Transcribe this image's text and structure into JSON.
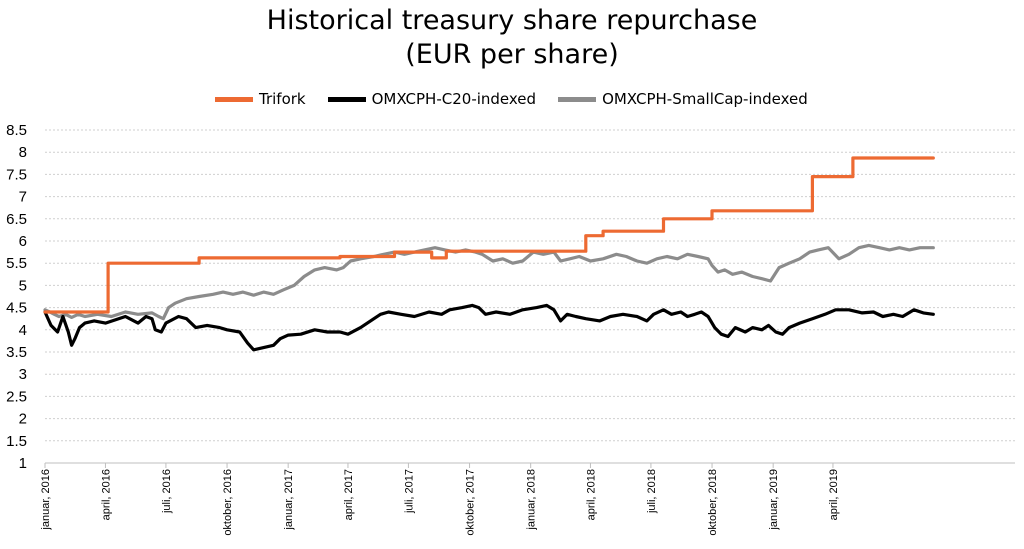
{
  "chart_data": {
    "type": "line",
    "title": [
      "Historical treasury share repurchase",
      "(EUR per share)"
    ],
    "ylim": [
      1,
      8.5
    ],
    "yticks": [
      "1",
      "1.5",
      "2",
      "2.5",
      "3",
      "3.5",
      "4",
      "4.5",
      "5",
      "5.5",
      "6",
      "6.5",
      "7",
      "7.5",
      "8",
      "8.5"
    ],
    "grid": true,
    "legend_position": "top",
    "x_range": [
      "2016-01-01",
      "2019-12-31"
    ],
    "x_ticks": [
      {
        "date": "2016-01-01",
        "label": "januar, 2016"
      },
      {
        "date": "2016-04-01",
        "label": "april, 2016"
      },
      {
        "date": "2016-07-01",
        "label": "juli, 2016"
      },
      {
        "date": "2016-10-01",
        "label": "oktober, 2016"
      },
      {
        "date": "2017-01-01",
        "label": "januar, 2017"
      },
      {
        "date": "2017-04-01",
        "label": "april, 2017"
      },
      {
        "date": "2017-07-01",
        "label": "juli, 2017"
      },
      {
        "date": "2017-10-01",
        "label": "oktober, 2017"
      },
      {
        "date": "2018-01-01",
        "label": "januar, 2018"
      },
      {
        "date": "2018-04-01",
        "label": "april, 2018"
      },
      {
        "date": "2018-07-01",
        "label": "juli, 2018"
      },
      {
        "date": "2018-10-01",
        "label": "oktober, 2018"
      },
      {
        "date": "2019-01-01",
        "label": "januar, 2019"
      },
      {
        "date": "2019-04-01",
        "label": "april, 2019"
      }
    ],
    "series": [
      {
        "name": "Trifork",
        "color": "#ED6A32",
        "step": true,
        "points": [
          [
            "2016-01-01",
            4.4
          ],
          [
            "2016-04-05",
            5.5
          ],
          [
            "2016-08-20",
            5.62
          ],
          [
            "2017-03-20",
            5.65
          ],
          [
            "2017-06-10",
            5.75
          ],
          [
            "2017-08-05",
            5.62
          ],
          [
            "2017-08-27",
            5.77
          ],
          [
            "2018-03-25",
            6.12
          ],
          [
            "2018-04-20",
            6.22
          ],
          [
            "2018-07-20",
            6.5
          ],
          [
            "2018-10-01",
            6.68
          ],
          [
            "2019-03-01",
            7.45
          ],
          [
            "2019-05-01",
            7.87
          ],
          [
            "2019-08-30",
            7.87
          ]
        ]
      },
      {
        "name": "OMXCPH-C20-indexed",
        "color": "#000000",
        "step": false,
        "points": [
          [
            "2016-01-01",
            4.4
          ],
          [
            "2016-01-10",
            4.1
          ],
          [
            "2016-01-20",
            3.95
          ],
          [
            "2016-01-28",
            4.3
          ],
          [
            "2016-02-05",
            3.95
          ],
          [
            "2016-02-10",
            3.65
          ],
          [
            "2016-02-15",
            3.8
          ],
          [
            "2016-02-22",
            4.05
          ],
          [
            "2016-03-01",
            4.15
          ],
          [
            "2016-03-15",
            4.2
          ],
          [
            "2016-04-01",
            4.15
          ],
          [
            "2016-05-01",
            4.3
          ],
          [
            "2016-05-20",
            4.15
          ],
          [
            "2016-06-01",
            4.3
          ],
          [
            "2016-06-10",
            4.25
          ],
          [
            "2016-06-15",
            4.0
          ],
          [
            "2016-06-24",
            3.95
          ],
          [
            "2016-07-01",
            4.15
          ],
          [
            "2016-07-20",
            4.3
          ],
          [
            "2016-08-01",
            4.25
          ],
          [
            "2016-08-15",
            4.05
          ],
          [
            "2016-09-01",
            4.1
          ],
          [
            "2016-09-20",
            4.05
          ],
          [
            "2016-10-01",
            4.0
          ],
          [
            "2016-10-20",
            3.95
          ],
          [
            "2016-11-01",
            3.7
          ],
          [
            "2016-11-10",
            3.55
          ],
          [
            "2016-11-25",
            3.6
          ],
          [
            "2016-12-10",
            3.65
          ],
          [
            "2016-12-20",
            3.8
          ],
          [
            "2017-01-01",
            3.88
          ],
          [
            "2017-01-20",
            3.9
          ],
          [
            "2017-02-10",
            4.0
          ],
          [
            "2017-03-01",
            3.95
          ],
          [
            "2017-03-20",
            3.95
          ],
          [
            "2017-04-01",
            3.9
          ],
          [
            "2017-04-20",
            4.05
          ],
          [
            "2017-05-10",
            4.25
          ],
          [
            "2017-05-20",
            4.35
          ],
          [
            "2017-06-01",
            4.4
          ],
          [
            "2017-06-20",
            4.35
          ],
          [
            "2017-07-10",
            4.3
          ],
          [
            "2017-08-01",
            4.4
          ],
          [
            "2017-08-20",
            4.35
          ],
          [
            "2017-09-01",
            4.45
          ],
          [
            "2017-09-20",
            4.5
          ],
          [
            "2017-10-05",
            4.55
          ],
          [
            "2017-10-15",
            4.5
          ],
          [
            "2017-10-25",
            4.35
          ],
          [
            "2017-11-10",
            4.4
          ],
          [
            "2017-12-01",
            4.35
          ],
          [
            "2017-12-20",
            4.45
          ],
          [
            "2018-01-10",
            4.5
          ],
          [
            "2018-01-25",
            4.55
          ],
          [
            "2018-02-05",
            4.45
          ],
          [
            "2018-02-15",
            4.2
          ],
          [
            "2018-02-25",
            4.35
          ],
          [
            "2018-03-10",
            4.3
          ],
          [
            "2018-03-25",
            4.25
          ],
          [
            "2018-04-15",
            4.2
          ],
          [
            "2018-05-01",
            4.3
          ],
          [
            "2018-05-20",
            4.35
          ],
          [
            "2018-06-10",
            4.3
          ],
          [
            "2018-06-25",
            4.2
          ],
          [
            "2018-07-05",
            4.35
          ],
          [
            "2018-07-20",
            4.45
          ],
          [
            "2018-08-01",
            4.35
          ],
          [
            "2018-08-15",
            4.4
          ],
          [
            "2018-08-25",
            4.3
          ],
          [
            "2018-09-05",
            4.35
          ],
          [
            "2018-09-15",
            4.4
          ],
          [
            "2018-09-25",
            4.3
          ],
          [
            "2018-10-05",
            4.05
          ],
          [
            "2018-10-15",
            3.9
          ],
          [
            "2018-10-25",
            3.85
          ],
          [
            "2018-11-05",
            4.05
          ],
          [
            "2018-11-20",
            3.95
          ],
          [
            "2018-12-01",
            4.05
          ],
          [
            "2018-12-15",
            4.0
          ],
          [
            "2018-12-25",
            4.1
          ],
          [
            "2019-01-05",
            3.95
          ],
          [
            "2019-01-15",
            3.9
          ],
          [
            "2019-01-25",
            4.05
          ],
          [
            "2019-02-10",
            4.15
          ],
          [
            "2019-03-01",
            4.25
          ],
          [
            "2019-03-20",
            4.35
          ],
          [
            "2019-04-05",
            4.45
          ],
          [
            "2019-04-25",
            4.45
          ],
          [
            "2019-05-15",
            4.38
          ],
          [
            "2019-06-01",
            4.4
          ],
          [
            "2019-06-15",
            4.3
          ],
          [
            "2019-07-01",
            4.35
          ],
          [
            "2019-07-15",
            4.3
          ],
          [
            "2019-08-01",
            4.45
          ],
          [
            "2019-08-15",
            4.38
          ],
          [
            "2019-08-30",
            4.35
          ]
        ]
      },
      {
        "name": "OMXCPH-SmallCap-indexed",
        "color": "#8C8C8C",
        "step": false,
        "points": [
          [
            "2016-01-01",
            4.45
          ],
          [
            "2016-01-08",
            4.4
          ],
          [
            "2016-01-15",
            4.35
          ],
          [
            "2016-01-22",
            4.3
          ],
          [
            "2016-02-01",
            4.35
          ],
          [
            "2016-02-10",
            4.28
          ],
          [
            "2016-02-20",
            4.35
          ],
          [
            "2016-03-01",
            4.3
          ],
          [
            "2016-03-20",
            4.35
          ],
          [
            "2016-04-10",
            4.3
          ],
          [
            "2016-05-01",
            4.4
          ],
          [
            "2016-05-20",
            4.35
          ],
          [
            "2016-06-10",
            4.38
          ],
          [
            "2016-06-20",
            4.3
          ],
          [
            "2016-06-27",
            4.25
          ],
          [
            "2016-07-05",
            4.5
          ],
          [
            "2016-07-15",
            4.6
          ],
          [
            "2016-08-01",
            4.7
          ],
          [
            "2016-08-20",
            4.75
          ],
          [
            "2016-09-10",
            4.8
          ],
          [
            "2016-09-25",
            4.85
          ],
          [
            "2016-10-10",
            4.8
          ],
          [
            "2016-10-25",
            4.85
          ],
          [
            "2016-11-10",
            4.78
          ],
          [
            "2016-11-25",
            4.85
          ],
          [
            "2016-12-10",
            4.8
          ],
          [
            "2016-12-25",
            4.9
          ],
          [
            "2017-01-10",
            5.0
          ],
          [
            "2017-01-25",
            5.2
          ],
          [
            "2017-02-10",
            5.35
          ],
          [
            "2017-02-25",
            5.4
          ],
          [
            "2017-03-15",
            5.35
          ],
          [
            "2017-03-25",
            5.4
          ],
          [
            "2017-04-05",
            5.55
          ],
          [
            "2017-04-20",
            5.6
          ],
          [
            "2017-05-10",
            5.65
          ],
          [
            "2017-05-25",
            5.7
          ],
          [
            "2017-06-10",
            5.75
          ],
          [
            "2017-06-25",
            5.7
          ],
          [
            "2017-07-10",
            5.75
          ],
          [
            "2017-07-25",
            5.8
          ],
          [
            "2017-08-10",
            5.85
          ],
          [
            "2017-08-25",
            5.8
          ],
          [
            "2017-09-10",
            5.75
          ],
          [
            "2017-09-25",
            5.8
          ],
          [
            "2017-10-10",
            5.75
          ],
          [
            "2017-10-20",
            5.7
          ],
          [
            "2017-11-05",
            5.55
          ],
          [
            "2017-11-20",
            5.6
          ],
          [
            "2017-12-05",
            5.5
          ],
          [
            "2017-12-20",
            5.55
          ],
          [
            "2018-01-05",
            5.75
          ],
          [
            "2018-01-20",
            5.7
          ],
          [
            "2018-02-05",
            5.75
          ],
          [
            "2018-02-15",
            5.55
          ],
          [
            "2018-03-01",
            5.6
          ],
          [
            "2018-03-15",
            5.65
          ],
          [
            "2018-04-01",
            5.55
          ],
          [
            "2018-04-20",
            5.6
          ],
          [
            "2018-05-10",
            5.7
          ],
          [
            "2018-05-25",
            5.65
          ],
          [
            "2018-06-10",
            5.55
          ],
          [
            "2018-06-25",
            5.5
          ],
          [
            "2018-07-10",
            5.6
          ],
          [
            "2018-07-25",
            5.65
          ],
          [
            "2018-08-10",
            5.6
          ],
          [
            "2018-08-25",
            5.7
          ],
          [
            "2018-09-10",
            5.65
          ],
          [
            "2018-09-25",
            5.6
          ],
          [
            "2018-10-01",
            5.45
          ],
          [
            "2018-10-10",
            5.3
          ],
          [
            "2018-10-20",
            5.35
          ],
          [
            "2018-11-01",
            5.25
          ],
          [
            "2018-11-15",
            5.3
          ],
          [
            "2018-12-01",
            5.2
          ],
          [
            "2018-12-15",
            5.15
          ],
          [
            "2018-12-28",
            5.1
          ],
          [
            "2019-01-10",
            5.4
          ],
          [
            "2019-01-25",
            5.5
          ],
          [
            "2019-02-10",
            5.6
          ],
          [
            "2019-02-25",
            5.75
          ],
          [
            "2019-03-10",
            5.8
          ],
          [
            "2019-03-25",
            5.85
          ],
          [
            "2019-04-10",
            5.6
          ],
          [
            "2019-04-25",
            5.7
          ],
          [
            "2019-05-10",
            5.85
          ],
          [
            "2019-05-25",
            5.9
          ],
          [
            "2019-06-10",
            5.85
          ],
          [
            "2019-06-25",
            5.8
          ],
          [
            "2019-07-10",
            5.85
          ],
          [
            "2019-07-25",
            5.8
          ],
          [
            "2019-08-10",
            5.85
          ],
          [
            "2019-08-30",
            5.85
          ]
        ]
      }
    ]
  }
}
